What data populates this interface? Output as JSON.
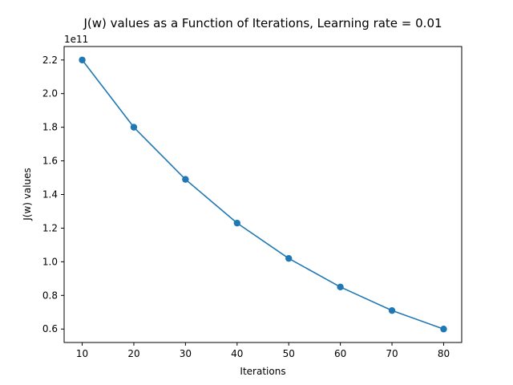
{
  "chart_data": {
    "type": "line",
    "title": "J(w) values as a Function of Iterations, Learning rate = 0.01",
    "xlabel": "Iterations",
    "ylabel": "J(w) values",
    "y_offset_label": "1e11",
    "y_scale": 100000000000,
    "x": [
      10,
      20,
      30,
      40,
      50,
      60,
      70,
      80
    ],
    "series": [
      {
        "values": [
          220000000000,
          180000000000,
          149000000000,
          123000000000,
          102000000000,
          85000000000,
          71000000000,
          60000000000
        ],
        "color": "#1f77b4",
        "marker": "circle"
      }
    ],
    "xlim": [
      6.5,
      83.5
    ],
    "ylim": [
      52000000000,
      228000000000
    ],
    "x_ticks": [
      10,
      20,
      30,
      40,
      50,
      60,
      70,
      80
    ],
    "x_tick_labels": [
      "10",
      "20",
      "30",
      "40",
      "50",
      "60",
      "70",
      "80"
    ],
    "y_ticks": [
      60000000000,
      80000000000,
      100000000000,
      120000000000,
      140000000000,
      160000000000,
      180000000000,
      200000000000,
      220000000000
    ],
    "y_tick_labels": [
      "0.6",
      "0.8",
      "1.0",
      "1.2",
      "1.4",
      "1.6",
      "1.8",
      "2.0",
      "2.2"
    ],
    "grid": false,
    "legend": "none"
  }
}
